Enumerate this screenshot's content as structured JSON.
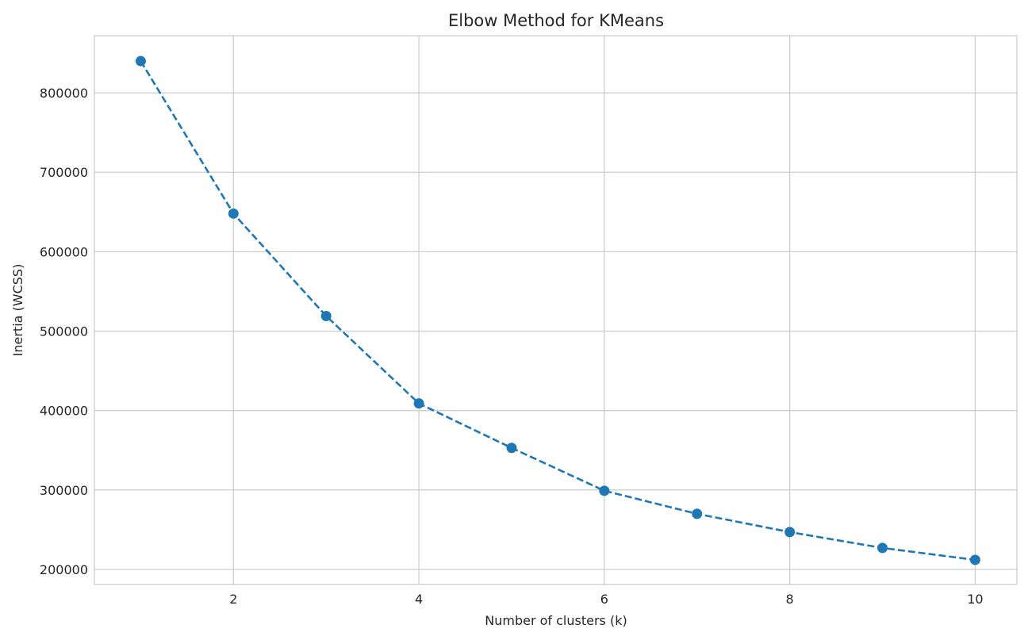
{
  "chart_data": {
    "type": "line",
    "title": "Elbow Method for KMeans",
    "xlabel": "Number of clusters (k)",
    "ylabel": "Inertia (WCSS)",
    "x": [
      1,
      2,
      3,
      4,
      5,
      6,
      7,
      8,
      9,
      10
    ],
    "series": [
      {
        "values": [
          840000,
          648000,
          519000,
          409000,
          353000,
          299000,
          270000,
          247000,
          227000,
          212000
        ],
        "color": "#1f77b4",
        "line_style": "dashed",
        "marker": "circle"
      }
    ],
    "xlim": [
      0.5,
      10.45
    ],
    "ylim": [
      181000,
      872000
    ],
    "x_ticks": [
      2,
      4,
      6,
      8,
      10
    ],
    "y_ticks": [
      200000,
      300000,
      400000,
      500000,
      600000,
      700000,
      800000
    ],
    "x_tick_labels": [
      "2",
      "4",
      "6",
      "8",
      "10"
    ],
    "y_tick_labels": [
      "200000",
      "300000",
      "400000",
      "500000",
      "600000",
      "700000",
      "800000"
    ],
    "grid": true,
    "legend": "none"
  }
}
